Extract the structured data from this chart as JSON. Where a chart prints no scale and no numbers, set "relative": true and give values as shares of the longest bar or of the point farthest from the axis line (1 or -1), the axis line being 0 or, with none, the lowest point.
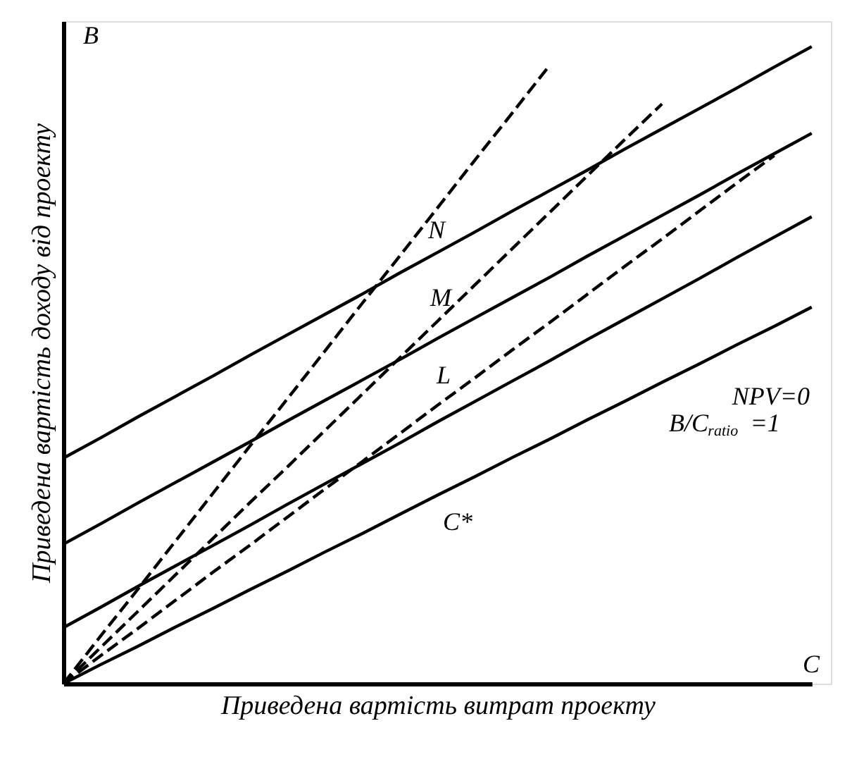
{
  "chart_data": {
    "type": "line",
    "relative": true,
    "xlabel": "Приведена вартість витрат проекту",
    "ylabel": "Приведена вартість доходу від проекту",
    "marker": "none",
    "categories": [
      null,
      null,
      null,
      null,
      null,
      null,
      null,
      null,
      null,
      null,
      null,
      null,
      null,
      null,
      null,
      null,
      null,
      null,
      null,
      null,
      null
    ],
    "series": [
      {
        "color": "#000000",
        "line_style": "solid",
        "values": [
          0,
          0.03,
          0.059,
          0.089,
          0.118,
          0.148,
          0.177,
          0.207,
          0.236,
          0.266,
          0.296,
          0.325,
          0.355,
          0.384,
          0.414,
          0.443,
          0.473,
          0.502,
          0.532,
          0.561,
          0.591
        ]
      },
      {
        "color": "#000000",
        "line_style": "solid",
        "values": [
          0.088,
          0.12,
          0.153,
          0.185,
          0.217,
          0.249,
          0.282,
          0.314,
          0.346,
          0.378,
          0.411,
          0.443,
          0.475,
          0.507,
          0.54,
          0.572,
          0.604,
          0.636,
          0.669,
          0.701,
          0.733
        ]
      },
      {
        "color": "#000000",
        "line_style": "solid",
        "values": [
          0.219,
          0.251,
          0.284,
          0.316,
          0.348,
          0.38,
          0.413,
          0.445,
          0.477,
          0.509,
          0.542,
          0.574,
          0.606,
          0.638,
          0.671,
          0.703,
          0.735,
          0.767,
          0.8,
          0.832,
          0.864
        ]
      },
      {
        "color": "#000000",
        "line_style": "solid",
        "values": [
          0.354,
          0.386,
          0.419,
          0.451,
          0.483,
          0.516,
          0.548,
          0.58,
          0.612,
          0.645,
          0.677,
          0.709,
          0.742,
          0.774,
          0.806,
          0.839,
          0.871,
          0.903,
          0.935,
          0.968,
          1.0
        ]
      },
      {
        "color": "#000000",
        "line_style": "dashed",
        "values": [
          0,
          0.075,
          0.149,
          0.224,
          0.299,
          0.374,
          0.448,
          0.523,
          0.598,
          0.672,
          0.747,
          0.822,
          0.896,
          0.971,
          null,
          null,
          null,
          null,
          null,
          null,
          null
        ]
      },
      {
        "color": "#000000",
        "line_style": "dashed",
        "values": [
          0,
          0.057,
          0.114,
          0.171,
          0.228,
          0.285,
          0.341,
          0.398,
          0.455,
          0.512,
          0.569,
          0.626,
          0.683,
          0.74,
          0.797,
          0.854,
          0.91,
          null,
          null,
          null,
          null
        ]
      },
      {
        "color": "#000000",
        "line_style": "dashed",
        "values": [
          0,
          0.044,
          0.087,
          0.131,
          0.175,
          0.218,
          0.262,
          0.306,
          0.349,
          0.393,
          0.437,
          0.48,
          0.524,
          0.567,
          0.611,
          0.655,
          0.698,
          0.742,
          0.786,
          0.829,
          null
        ]
      }
    ],
    "annotations": [
      "B",
      "C",
      "NPV=0",
      "B/C$_{ratio}$ =1",
      "N",
      "M",
      "L",
      "C*"
    ]
  }
}
